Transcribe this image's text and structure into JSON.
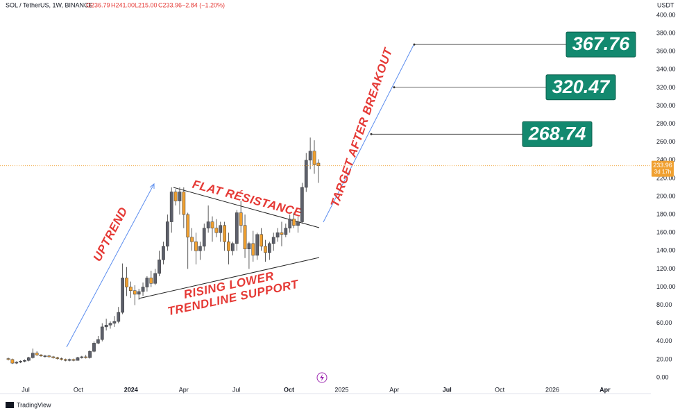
{
  "header": {
    "symbol": "SOL / TetherUS, 1W, BINANCE",
    "open": "O236.79",
    "high": "H241.00",
    "low": "L215.00",
    "close": "C233.96",
    "change": "−2.84 (−1.20%)"
  },
  "footer": {
    "brand": "TradingView"
  },
  "chart_data": {
    "type": "candlestick",
    "y_axis_label": "USDT",
    "up_color": "#5d606b",
    "down_color": "#f0a030",
    "grid": false,
    "ylim": [
      0,
      400
    ],
    "yticks": [
      {
        "value": 0,
        "label": "0.00"
      },
      {
        "value": 20,
        "label": "20.00"
      },
      {
        "value": 40,
        "label": "40.00"
      },
      {
        "value": 60,
        "label": "60.00"
      },
      {
        "value": 80,
        "label": "80.00"
      },
      {
        "value": 100,
        "label": "100.00"
      },
      {
        "value": 120,
        "label": "120.00"
      },
      {
        "value": 140,
        "label": "140.00"
      },
      {
        "value": 160,
        "label": "160.00"
      },
      {
        "value": 180,
        "label": "180.00"
      },
      {
        "value": 200,
        "label": "200.00"
      },
      {
        "value": 220,
        "label": "220.00"
      },
      {
        "value": 240,
        "label": "240.00"
      },
      {
        "value": 260,
        "label": "260.00"
      },
      {
        "value": 280,
        "label": "280.00"
      },
      {
        "value": 300,
        "label": "300.00"
      },
      {
        "value": 320,
        "label": "320.00"
      },
      {
        "value": 340,
        "label": "340.00"
      },
      {
        "value": 360,
        "label": "360.00"
      },
      {
        "value": 380,
        "label": "380.00"
      },
      {
        "value": 400,
        "label": "400.00"
      }
    ],
    "xticks": [
      "Jul",
      "Oct",
      "2024",
      "Apr",
      "Jul",
      "Oct",
      "2025",
      "Apr",
      "Jul",
      "Oct",
      "2026",
      "Apr"
    ],
    "candles": [
      [
        21,
        22,
        19,
        20
      ],
      [
        20,
        21,
        15,
        16
      ],
      [
        16,
        18,
        15,
        17
      ],
      [
        17,
        19,
        16,
        18
      ],
      [
        18,
        20,
        17,
        19
      ],
      [
        19,
        23,
        18,
        22
      ],
      [
        22,
        32,
        21,
        27
      ],
      [
        27,
        29,
        24,
        25
      ],
      [
        25,
        26,
        23,
        24
      ],
      [
        24,
        25,
        22,
        24
      ],
      [
        24,
        25,
        22,
        23
      ],
      [
        23,
        24,
        21,
        22
      ],
      [
        22,
        23,
        20,
        21
      ],
      [
        21,
        22,
        19,
        20
      ],
      [
        20,
        21,
        18,
        19
      ],
      [
        19,
        21,
        18,
        20
      ],
      [
        20,
        21,
        18,
        19
      ],
      [
        19,
        23,
        19,
        22
      ],
      [
        22,
        24,
        21,
        23
      ],
      [
        23,
        25,
        21,
        22
      ],
      [
        22,
        30,
        21,
        29
      ],
      [
        29,
        40,
        28,
        38
      ],
      [
        38,
        46,
        37,
        42
      ],
      [
        42,
        60,
        40,
        56
      ],
      [
        56,
        65,
        52,
        58
      ],
      [
        58,
        62,
        54,
        60
      ],
      [
        60,
        68,
        56,
        62
      ],
      [
        62,
        78,
        60,
        72
      ],
      [
        72,
        126,
        70,
        110
      ],
      [
        110,
        122,
        90,
        100
      ],
      [
        100,
        106,
        88,
        96
      ],
      [
        96,
        102,
        80,
        92
      ],
      [
        92,
        98,
        86,
        95
      ],
      [
        95,
        105,
        90,
        100
      ],
      [
        100,
        112,
        95,
        110
      ],
      [
        110,
        118,
        100,
        104
      ],
      [
        104,
        120,
        102,
        115
      ],
      [
        115,
        140,
        112,
        130
      ],
      [
        130,
        150,
        125,
        145
      ],
      [
        145,
        180,
        140,
        172
      ],
      [
        172,
        210,
        160,
        205
      ],
      [
        205,
        208,
        190,
        195
      ],
      [
        195,
        210,
        180,
        205
      ],
      [
        205,
        210,
        165,
        180
      ],
      [
        180,
        182,
        120,
        155
      ],
      [
        155,
        165,
        140,
        150
      ],
      [
        150,
        160,
        125,
        140
      ],
      [
        140,
        150,
        130,
        145
      ],
      [
        145,
        170,
        140,
        165
      ],
      [
        165,
        190,
        160,
        172
      ],
      [
        172,
        178,
        150,
        165
      ],
      [
        165,
        175,
        155,
        160
      ],
      [
        160,
        172,
        150,
        168
      ],
      [
        168,
        172,
        140,
        150
      ],
      [
        150,
        160,
        125,
        140
      ],
      [
        140,
        150,
        135,
        148
      ],
      [
        148,
        185,
        140,
        182
      ],
      [
        182,
        195,
        160,
        168
      ],
      [
        168,
        180,
        132,
        142
      ],
      [
        142,
        150,
        120,
        148
      ],
      [
        148,
        162,
        128,
        135
      ],
      [
        135,
        160,
        130,
        158
      ],
      [
        158,
        165,
        140,
        145
      ],
      [
        145,
        152,
        128,
        138
      ],
      [
        138,
        150,
        130,
        148
      ],
      [
        148,
        160,
        140,
        155
      ],
      [
        155,
        165,
        150,
        160
      ],
      [
        160,
        172,
        145,
        158
      ],
      [
        158,
        170,
        155,
        165
      ],
      [
        165,
        180,
        160,
        175
      ],
      [
        175,
        182,
        165,
        168
      ],
      [
        168,
        178,
        160,
        172
      ],
      [
        172,
        215,
        170,
        210
      ],
      [
        210,
        248,
        205,
        240
      ],
      [
        240,
        265,
        230,
        250
      ],
      [
        250,
        262,
        225,
        235
      ],
      [
        236.79,
        241,
        215,
        233.96
      ]
    ],
    "last_price": 233.96,
    "countdown": "3d 17h",
    "targets": [
      367.76,
      320.47,
      268.74
    ],
    "annotations": [
      "UPTREND",
      "FLAT RÉSISTANCE",
      "RISING LOWER",
      "TRENDLINE SUPPORT",
      "TARGET AFTER BREAKOUT"
    ]
  }
}
